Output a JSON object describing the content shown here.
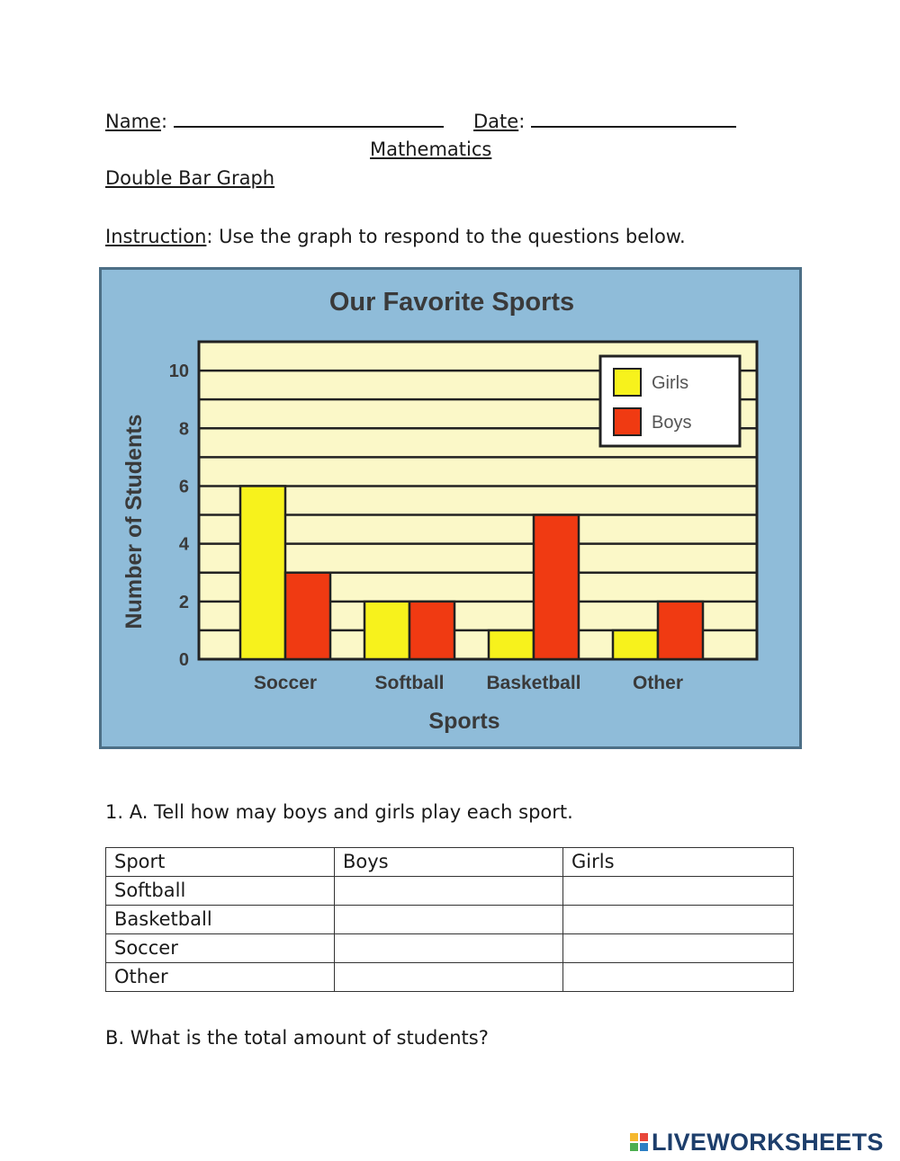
{
  "header": {
    "name_label": "Name",
    "date_label": "Date",
    "subject": "Mathematics",
    "topic": "Double Bar Graph",
    "instruction_label": "Instruction",
    "instruction_text": ": Use the graph to respond to the questions below."
  },
  "chart_data": {
    "type": "bar",
    "title": "Our Favorite Sports",
    "xlabel": "Sports",
    "ylabel": "Number of Students",
    "categories": [
      "Soccer",
      "Softball",
      "Basketball",
      "Other"
    ],
    "series": [
      {
        "name": "Girls",
        "values": [
          6,
          2,
          1,
          1
        ],
        "color": "#f7f21c"
      },
      {
        "name": "Boys",
        "values": [
          3,
          2,
          5,
          2
        ],
        "color": "#f03a12"
      }
    ],
    "ylim": [
      0,
      11
    ],
    "yticks": [
      "0",
      "2",
      "4",
      "6",
      "8",
      "10"
    ],
    "grid": true,
    "legend_position": "top-right",
    "colors": {
      "frame_bg": "#8fbcd9",
      "plot_bg": "#fbf8c8",
      "text": "#3a3a3a"
    }
  },
  "question1": {
    "prompt": "1. A. Tell how may boys and girls play each sport.",
    "table": {
      "headers": [
        "Sport",
        "Boys",
        "Girls"
      ],
      "rows": [
        [
          "Softball",
          "",
          ""
        ],
        [
          "Basketball",
          "",
          ""
        ],
        [
          "Soccer",
          "",
          ""
        ],
        [
          "Other",
          "",
          ""
        ]
      ]
    },
    "part_b": "B. What is the total amount of students?"
  },
  "footer": {
    "logo_text": "LIVEWORKSHEETS",
    "logo_colors": [
      "#f5b82e",
      "#e8463a",
      "#4caf50",
      "#2c7fc4"
    ]
  }
}
